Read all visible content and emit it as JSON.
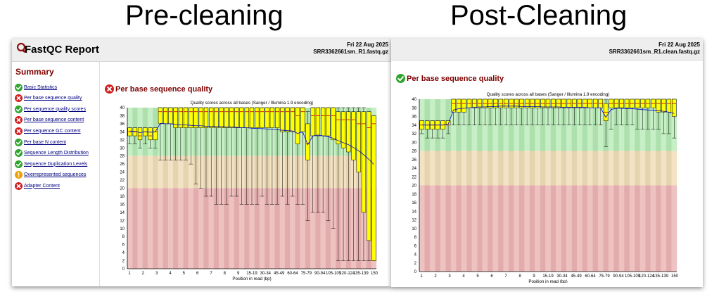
{
  "headings": {
    "left": "Pre-cleaning",
    "right": "Post-Cleaning"
  },
  "colors": {
    "good": "#c6efc6",
    "good_alt": "#aee0ae",
    "ok": "#f3e3c4",
    "ok_alt": "#e6d3b0",
    "bad": "#efc2c2",
    "bad_alt": "#e3acac",
    "box": "#ffff00",
    "mean_line": "#0000cc"
  },
  "report": {
    "title": "FastQC Report",
    "logo_icon": "fastqc-logo-icon"
  },
  "pre": {
    "date": "Fri 22 Aug 2025",
    "file": "SRR3362661sm_R1.fastq.gz",
    "summary_title": "Summary",
    "summary": [
      {
        "label": "Basic Statistics",
        "status": "pass"
      },
      {
        "label": "Per base sequence quality",
        "status": "fail"
      },
      {
        "label": "Per sequence quality scores",
        "status": "pass"
      },
      {
        "label": "Per base sequence content",
        "status": "fail"
      },
      {
        "label": "Per sequence GC content",
        "status": "fail"
      },
      {
        "label": "Per base N content",
        "status": "pass"
      },
      {
        "label": "Sequence Length Distribution",
        "status": "pass"
      },
      {
        "label": "Sequence Duplication Levels",
        "status": "pass"
      },
      {
        "label": "Overrepresented sequences",
        "status": "warn"
      },
      {
        "label": "Adapter Content",
        "status": "fail"
      }
    ],
    "module_title": "Per base sequence quality",
    "module_status": "fail"
  },
  "post": {
    "date": "Fri 22 Aug 2025",
    "file": "SRR3362661sm_R1.clean.fastq.gz",
    "module_title": "Per base sequence quality",
    "module_status": "pass"
  },
  "chart_data": [
    {
      "type": "box",
      "title": "Quality scores across all bases (Sanger / Illumina 1.9 encoding)",
      "xlabel": "Position in read (bp)",
      "ylim": [
        0,
        40
      ],
      "yticks": [
        0,
        2,
        4,
        6,
        8,
        10,
        12,
        14,
        16,
        18,
        20,
        22,
        24,
        26,
        28,
        30,
        32,
        34,
        36,
        38,
        40
      ],
      "categories": [
        "1",
        "2",
        "3",
        "4",
        "5",
        "6",
        "7",
        "8",
        "9",
        "15-19",
        "30-34",
        "45-49",
        "60-64",
        "75-79",
        "90-94",
        "105-109",
        "120-124",
        "135-139",
        "150"
      ],
      "bands": {
        "good": [
          28,
          40
        ],
        "ok": [
          20,
          28
        ],
        "bad": [
          0,
          20
        ]
      },
      "boxes": [
        {
          "q1": 33,
          "median": 34,
          "q3": 35,
          "low": 31,
          "high": 35
        },
        {
          "q1": 33,
          "median": 34,
          "q3": 35,
          "low": 31,
          "high": 35
        },
        {
          "q1": 32,
          "median": 33,
          "q3": 35,
          "low": 30,
          "high": 35
        },
        {
          "q1": 33,
          "median": 34,
          "q3": 35,
          "low": 31,
          "high": 35
        },
        {
          "q1": 32,
          "median": 33,
          "q3": 35,
          "low": 30,
          "high": 35
        },
        {
          "q1": 32,
          "median": 34,
          "q3": 35,
          "low": 30,
          "high": 35
        },
        {
          "q1": 36,
          "median": 39,
          "q3": 40,
          "low": 27,
          "high": 40
        },
        {
          "q1": 36,
          "median": 39,
          "q3": 40,
          "low": 27,
          "high": 40
        },
        {
          "q1": 36,
          "median": 39,
          "q3": 40,
          "low": 27,
          "high": 40
        },
        {
          "q1": 35,
          "median": 39,
          "q3": 40,
          "low": 27,
          "high": 40
        },
        {
          "q1": 35,
          "median": 39,
          "q3": 40,
          "low": 27,
          "high": 40
        },
        {
          "q1": 35,
          "median": 39,
          "q3": 40,
          "low": 27,
          "high": 40
        },
        {
          "q1": 35,
          "median": 39,
          "q3": 40,
          "low": 26,
          "high": 40
        },
        {
          "q1": 35,
          "median": 39,
          "q3": 40,
          "low": 21,
          "high": 40
        },
        {
          "q1": 35,
          "median": 39,
          "q3": 40,
          "low": 20,
          "high": 40
        },
        {
          "q1": 35,
          "median": 39,
          "q3": 40,
          "low": 18,
          "high": 40
        },
        {
          "q1": 35,
          "median": 39,
          "q3": 40,
          "low": 18,
          "high": 40
        },
        {
          "q1": 35,
          "median": 39,
          "q3": 40,
          "low": 16,
          "high": 40
        },
        {
          "q1": 35,
          "median": 39,
          "q3": 40,
          "low": 16,
          "high": 40
        },
        {
          "q1": 35,
          "median": 39,
          "q3": 40,
          "low": 16,
          "high": 40
        },
        {
          "q1": 35,
          "median": 39,
          "q3": 40,
          "low": 18,
          "high": 40
        },
        {
          "q1": 35,
          "median": 39,
          "q3": 40,
          "low": 18,
          "high": 40
        },
        {
          "q1": 35,
          "median": 39,
          "q3": 40,
          "low": 16,
          "high": 40
        },
        {
          "q1": 35,
          "median": 39,
          "q3": 40,
          "low": 16,
          "high": 40
        },
        {
          "q1": 35,
          "median": 39,
          "q3": 40,
          "low": 16,
          "high": 40
        },
        {
          "q1": 35,
          "median": 39,
          "q3": 40,
          "low": 16,
          "high": 40
        },
        {
          "q1": 35,
          "median": 39,
          "q3": 40,
          "low": 18,
          "high": 40
        },
        {
          "q1": 35,
          "median": 39,
          "q3": 40,
          "low": 16,
          "high": 40
        },
        {
          "q1": 35,
          "median": 39,
          "q3": 40,
          "low": 16,
          "high": 40
        },
        {
          "q1": 35,
          "median": 39,
          "q3": 40,
          "low": 16,
          "high": 40
        },
        {
          "q1": 34,
          "median": 39,
          "q3": 40,
          "low": 18,
          "high": 40
        },
        {
          "q1": 34,
          "median": 39,
          "q3": 40,
          "low": 16,
          "high": 40
        },
        {
          "q1": 34,
          "median": 39,
          "q3": 40,
          "low": 18,
          "high": 40
        },
        {
          "q1": 31,
          "median": 38,
          "q3": 40,
          "low": 16,
          "high": 40
        },
        {
          "q1": 34,
          "median": 39,
          "q3": 40,
          "low": 16,
          "high": 40
        },
        {
          "q1": 27,
          "median": 31,
          "q3": 36,
          "low": 12,
          "high": 39
        },
        {
          "q1": 33,
          "median": 38,
          "q3": 40,
          "low": 14,
          "high": 40
        },
        {
          "q1": 33,
          "median": 38,
          "q3": 40,
          "low": 14,
          "high": 40
        },
        {
          "q1": 33,
          "median": 38,
          "q3": 40,
          "low": 14,
          "high": 40
        },
        {
          "q1": 33,
          "median": 38,
          "q3": 40,
          "low": 12,
          "high": 40
        },
        {
          "q1": 32,
          "median": 38,
          "q3": 40,
          "low": 10,
          "high": 40
        },
        {
          "q1": 31,
          "median": 37,
          "q3": 39,
          "low": 2,
          "high": 40
        },
        {
          "q1": 30,
          "median": 37,
          "q3": 39,
          "low": 2,
          "high": 40
        },
        {
          "q1": 29,
          "median": 37,
          "q3": 39,
          "low": 2,
          "high": 40
        },
        {
          "q1": 27,
          "median": 37,
          "q3": 39,
          "low": 2,
          "high": 40
        },
        {
          "q1": 24,
          "median": 36,
          "q3": 39,
          "low": 2,
          "high": 40
        },
        {
          "q1": 14,
          "median": 36,
          "q3": 39,
          "low": 2,
          "high": 40
        },
        {
          "q1": 7,
          "median": 35,
          "q3": 39,
          "low": 2,
          "high": 39
        },
        {
          "q1": 2,
          "median": 36,
          "q3": 38,
          "low": 2,
          "high": 38
        }
      ],
      "mean": [
        34.2,
        34.1,
        33.8,
        34.0,
        33.9,
        34.0,
        36.1,
        36.0,
        36.0,
        35.8,
        35.7,
        35.7,
        35.6,
        35.5,
        35.5,
        35.4,
        35.4,
        35.3,
        35.3,
        35.2,
        35.2,
        35.1,
        35.0,
        35.0,
        34.9,
        34.8,
        34.8,
        34.7,
        34.6,
        34.5,
        34.4,
        34.3,
        34.2,
        33.6,
        34.0,
        30.8,
        33.0,
        33.2,
        33.0,
        32.8,
        32.4,
        31.8,
        31.3,
        30.8,
        30.1,
        29.3,
        28.3,
        27.2,
        25.9
      ]
    },
    {
      "type": "box",
      "title": "Quality scores across all bases (Sanger / Illumina 1.9 encoding)",
      "xlabel": "Position in read (bp)",
      "ylim": [
        0,
        40
      ],
      "yticks": [
        0,
        2,
        4,
        6,
        8,
        10,
        12,
        14,
        16,
        18,
        20,
        22,
        24,
        26,
        28,
        30,
        32,
        34,
        36,
        38,
        40
      ],
      "categories": [
        "1",
        "2",
        "3",
        "4",
        "5",
        "6",
        "7",
        "8",
        "9",
        "15-19",
        "30-34",
        "45-49",
        "60-64",
        "75-79",
        "90-94",
        "105-109",
        "120-124",
        "135-139",
        "150"
      ],
      "bands": {
        "good": [
          28,
          40
        ],
        "ok": [
          20,
          28
        ],
        "bad": [
          0,
          20
        ]
      },
      "boxes": [
        {
          "q1": 33,
          "median": 34,
          "q3": 35,
          "low": 32,
          "high": 35
        },
        {
          "q1": 33,
          "median": 34,
          "q3": 35,
          "low": 31,
          "high": 35
        },
        {
          "q1": 33,
          "median": 34,
          "q3": 35,
          "low": 31,
          "high": 35
        },
        {
          "q1": 33,
          "median": 34,
          "q3": 35,
          "low": 31,
          "high": 35
        },
        {
          "q1": 33,
          "median": 34,
          "q3": 35,
          "low": 31,
          "high": 35
        },
        {
          "q1": 34,
          "median": 34,
          "q3": 35,
          "low": 32,
          "high": 35
        },
        {
          "q1": 37,
          "median": 39,
          "q3": 40,
          "low": 34,
          "high": 40
        },
        {
          "q1": 37,
          "median": 39,
          "q3": 40,
          "low": 34,
          "high": 40
        },
        {
          "q1": 37,
          "median": 39,
          "q3": 40,
          "low": 34,
          "high": 40
        },
        {
          "q1": 38,
          "median": 39,
          "q3": 40,
          "low": 34,
          "high": 40
        },
        {
          "q1": 38,
          "median": 39,
          "q3": 40,
          "low": 34,
          "high": 40
        },
        {
          "q1": 38,
          "median": 39,
          "q3": 40,
          "low": 34,
          "high": 40
        },
        {
          "q1": 38,
          "median": 39,
          "q3": 40,
          "low": 34,
          "high": 40
        },
        {
          "q1": 38,
          "median": 39,
          "q3": 40,
          "low": 34,
          "high": 40
        },
        {
          "q1": 38,
          "median": 39,
          "q3": 40,
          "low": 34,
          "high": 40
        },
        {
          "q1": 38,
          "median": 39,
          "q3": 40,
          "low": 34,
          "high": 40
        },
        {
          "q1": 38,
          "median": 39,
          "q3": 40,
          "low": 34,
          "high": 40
        },
        {
          "q1": 38,
          "median": 39,
          "q3": 40,
          "low": 34,
          "high": 40
        },
        {
          "q1": 38,
          "median": 39,
          "q3": 40,
          "low": 34,
          "high": 40
        },
        {
          "q1": 38,
          "median": 39,
          "q3": 40,
          "low": 34,
          "high": 40
        },
        {
          "q1": 38,
          "median": 39,
          "q3": 40,
          "low": 34,
          "high": 40
        },
        {
          "q1": 38,
          "median": 39,
          "q3": 40,
          "low": 34,
          "high": 40
        },
        {
          "q1": 38,
          "median": 39,
          "q3": 40,
          "low": 34,
          "high": 40
        },
        {
          "q1": 38,
          "median": 39,
          "q3": 40,
          "low": 34,
          "high": 40
        },
        {
          "q1": 38,
          "median": 39,
          "q3": 40,
          "low": 34,
          "high": 40
        },
        {
          "q1": 38,
          "median": 39,
          "q3": 40,
          "low": 34,
          "high": 40
        },
        {
          "q1": 38,
          "median": 39,
          "q3": 40,
          "low": 34,
          "high": 40
        },
        {
          "q1": 38,
          "median": 39,
          "q3": 40,
          "low": 34,
          "high": 40
        },
        {
          "q1": 38,
          "median": 39,
          "q3": 40,
          "low": 34,
          "high": 40
        },
        {
          "q1": 38,
          "median": 39,
          "q3": 40,
          "low": 34,
          "high": 40
        },
        {
          "q1": 38,
          "median": 39,
          "q3": 40,
          "low": 34,
          "high": 40
        },
        {
          "q1": 38,
          "median": 39,
          "q3": 40,
          "low": 34,
          "high": 40
        },
        {
          "q1": 38,
          "median": 39,
          "q3": 40,
          "low": 34,
          "high": 40
        },
        {
          "q1": 38,
          "median": 39,
          "q3": 40,
          "low": 34,
          "high": 40
        },
        {
          "q1": 38,
          "median": 39,
          "q3": 40,
          "low": 34,
          "high": 40
        },
        {
          "q1": 35,
          "median": 37,
          "q3": 39,
          "low": 29,
          "high": 40
        },
        {
          "q1": 38,
          "median": 39,
          "q3": 40,
          "low": 33,
          "high": 40
        },
        {
          "q1": 38,
          "median": 39,
          "q3": 40,
          "low": 34,
          "high": 40
        },
        {
          "q1": 38,
          "median": 39,
          "q3": 40,
          "low": 34,
          "high": 40
        },
        {
          "q1": 38,
          "median": 39,
          "q3": 40,
          "low": 34,
          "high": 40
        },
        {
          "q1": 38,
          "median": 39,
          "q3": 40,
          "low": 34,
          "high": 40
        },
        {
          "q1": 38,
          "median": 39,
          "q3": 40,
          "low": 33,
          "high": 40
        },
        {
          "q1": 38,
          "median": 39,
          "q3": 40,
          "low": 33,
          "high": 40
        },
        {
          "q1": 38,
          "median": 39,
          "q3": 40,
          "low": 33,
          "high": 40
        },
        {
          "q1": 38,
          "median": 39,
          "q3": 40,
          "low": 33,
          "high": 40
        },
        {
          "q1": 37,
          "median": 39,
          "q3": 40,
          "low": 33,
          "high": 40
        },
        {
          "q1": 37,
          "median": 39,
          "q3": 40,
          "low": 32,
          "high": 40
        },
        {
          "q1": 37,
          "median": 39,
          "q3": 40,
          "low": 32,
          "high": 40
        },
        {
          "q1": 36,
          "median": 39,
          "q3": 40,
          "low": 31,
          "high": 40
        }
      ],
      "mean": [
        34.0,
        34.0,
        34.0,
        34.0,
        34.0,
        34.2,
        37.5,
        37.8,
        37.9,
        38.0,
        38.1,
        38.2,
        38.2,
        38.3,
        38.3,
        38.4,
        38.4,
        38.4,
        38.4,
        38.3,
        38.3,
        38.3,
        38.3,
        38.2,
        38.2,
        38.2,
        38.2,
        38.1,
        38.1,
        38.1,
        38.1,
        38.1,
        38.0,
        38.0,
        38.0,
        35.8,
        37.6,
        37.9,
        37.9,
        37.8,
        37.8,
        37.7,
        37.6,
        37.5,
        37.4,
        37.3,
        37.2,
        37.0,
        36.7
      ]
    }
  ]
}
